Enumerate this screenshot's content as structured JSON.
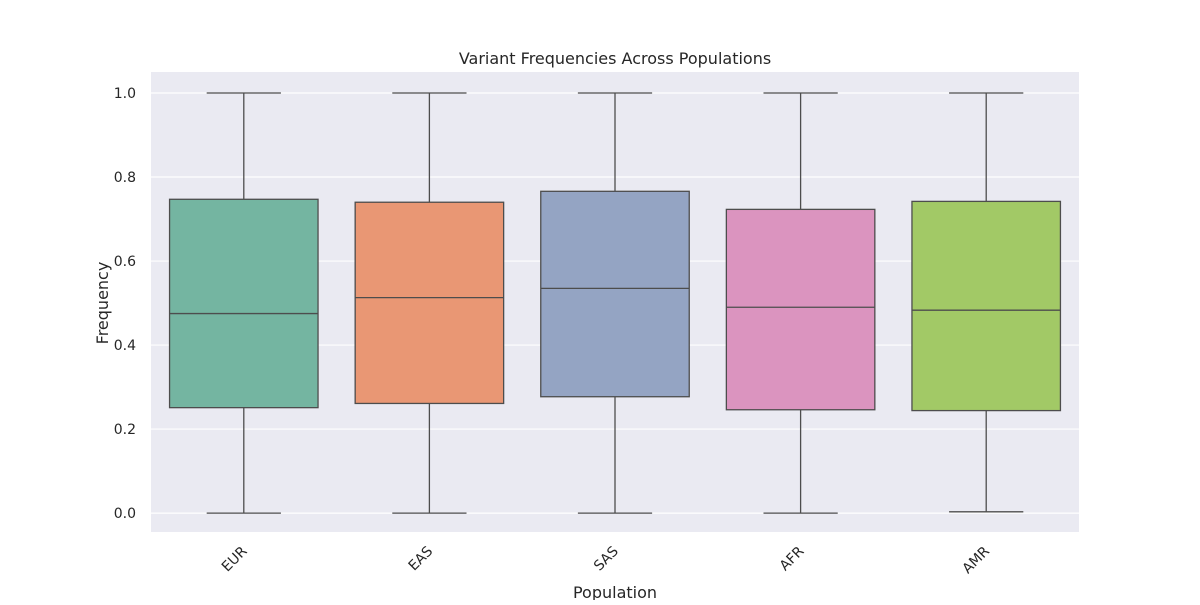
{
  "chart_data": {
    "type": "box",
    "title": "Variant Frequencies Across Populations",
    "xlabel": "Population",
    "ylabel": "Frequency",
    "ylim": [
      -0.045,
      1.05
    ],
    "yticks": [
      "0.0",
      "0.2",
      "0.4",
      "0.6",
      "0.8",
      "1.0"
    ],
    "grid": true,
    "categories": [
      "EUR",
      "EAS",
      "SAS",
      "AFR",
      "AMR"
    ],
    "colors": [
      "#74b5a1",
      "#e99774",
      "#94a4c3",
      "#db94bf",
      "#a2c966"
    ],
    "boxes": [
      {
        "category": "EUR",
        "min": 0.0,
        "q1": 0.251,
        "median": 0.475,
        "q3": 0.747,
        "max": 1.0
      },
      {
        "category": "EAS",
        "min": 0.0,
        "q1": 0.261,
        "median": 0.513,
        "q3": 0.74,
        "max": 1.0
      },
      {
        "category": "SAS",
        "min": 0.0,
        "q1": 0.277,
        "median": 0.535,
        "q3": 0.766,
        "max": 1.0
      },
      {
        "category": "AFR",
        "min": 0.0,
        "q1": 0.246,
        "median": 0.49,
        "q3": 0.723,
        "max": 1.0
      },
      {
        "category": "AMR",
        "min": 0.003,
        "q1": 0.244,
        "median": 0.483,
        "q3": 0.742,
        "max": 1.0
      }
    ]
  }
}
